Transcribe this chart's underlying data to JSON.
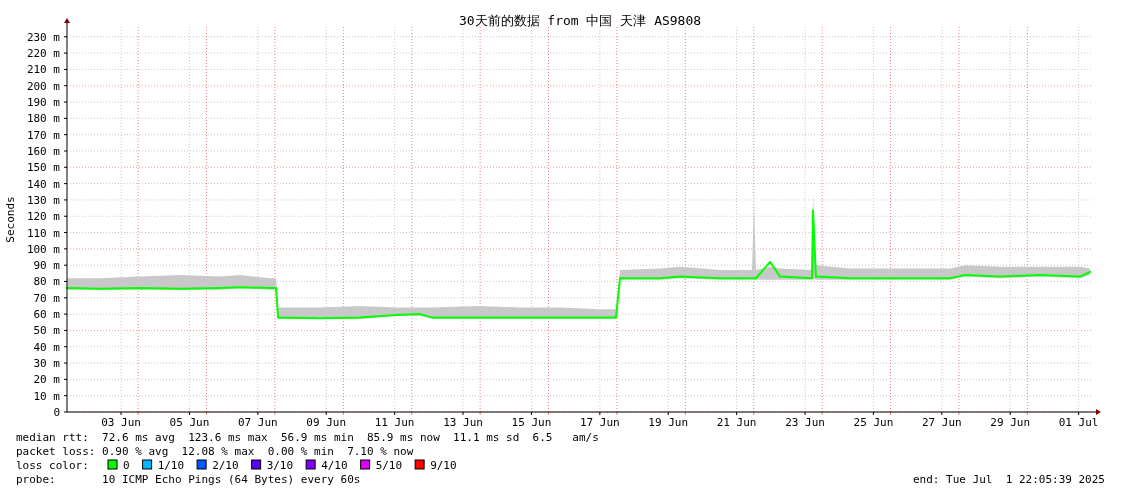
{
  "chart_data": {
    "type": "line",
    "title": "30天前的数据 from 中国 天津 AS9808",
    "ylabel": "Seconds",
    "legend_title": "loss color:",
    "annotations": [
      "median rtt:  72.6 ms avg  123.6 ms max  56.9 ms min  85.9 ms now  11.1 ms sd  6.5   am/s",
      "packet loss: 0.90 % avg  12.08 % max  0.00 % min  7.10 % now",
      "probe:       10 ICMP Echo Pings (64 Bytes) every 60s",
      "end: Tue Jul  1 22:05:39 2025"
    ],
    "x": [
      "2025-06-01T22:05",
      "2025-06-02T21:17",
      "2025-06-04T01:17",
      "2025-06-05T05:23",
      "2025-06-06T09:29",
      "2025-06-06T23:29",
      "2025-06-07T20:35",
      "2025-06-08T00:47",
      "2025-06-08T02:11",
      "2025-06-09T07:41",
      "2025-06-10T11:41",
      "2025-06-11T12:59",
      "2025-06-12T05:47",
      "2025-06-12T14:17",
      "2025-06-13T23:53",
      "2025-06-15T03:59",
      "2025-06-16T08:05",
      "2025-06-17T12:11",
      "2025-06-17T23:23",
      "2025-06-18T02:11",
      "2025-06-19T06:17",
      "2025-06-19T20:17",
      "2025-06-21T00:23",
      "2025-06-21T22:47",
      "2025-06-22T00:11",
      "2025-06-22T01:35",
      "2025-06-22T11:29",
      "2025-06-22T18:29",
      "2025-06-23T16:53",
      "2025-06-23T17:35",
      "2025-06-23T19:41",
      "2025-06-24T19:35",
      "2025-06-26T06:41",
      "2025-06-27T17:47",
      "2025-06-28T04:17",
      "2025-06-29T04:53",
      "2025-06-30T08:59",
      "2025-07-01T12:59",
      "2025-07-01T20:05"
    ],
    "series": [
      {
        "name": "0",
        "color": "#00ff00",
        "values": [
          76,
          75.5,
          76,
          75.5,
          76,
          76.5,
          76,
          76,
          58,
          57.5,
          58,
          59.5,
          60,
          58,
          58,
          58,
          58,
          58,
          58,
          82,
          82,
          83,
          82,
          82,
          82,
          82,
          92,
          83,
          82,
          123.6,
          83,
          82,
          82,
          82,
          84,
          83,
          84,
          83,
          85.9
        ],
        "lower": [
          75,
          75,
          75,
          75,
          75,
          76,
          75,
          75,
          57,
          57,
          57,
          59,
          59,
          57,
          57,
          57,
          57,
          57,
          57,
          81,
          81,
          82,
          81,
          81,
          81,
          81,
          81,
          81,
          81,
          82,
          81,
          81,
          81,
          81,
          83,
          82,
          83,
          82,
          84
        ],
        "upper": [
          82,
          82,
          83,
          84,
          83,
          84,
          82,
          82,
          64,
          64,
          65,
          64,
          64,
          64,
          65,
          64,
          64,
          63,
          63,
          87,
          88,
          89,
          87,
          87,
          128,
          87,
          89,
          88,
          87,
          134,
          90,
          88,
          88,
          88,
          90,
          89,
          89,
          89,
          88
        ]
      },
      {
        "name": "1/10",
        "color": "#00b8ff",
        "values": [
          null,
          null,
          null,
          null,
          null,
          null,
          null,
          null,
          null,
          null,
          null,
          null,
          null,
          null,
          null,
          null,
          null,
          null,
          null,
          null,
          null,
          null,
          null,
          null,
          null,
          null,
          null,
          null,
          null,
          null,
          null,
          null,
          null,
          null,
          null,
          null,
          null,
          null,
          null
        ]
      },
      {
        "name": "2/10",
        "color": "#0059ff",
        "values": [
          null,
          null,
          null,
          null,
          null,
          null,
          null,
          null,
          null,
          null,
          null,
          null,
          null,
          null,
          null,
          null,
          null,
          null,
          null,
          null,
          null,
          null,
          null,
          null,
          null,
          null,
          null,
          null,
          null,
          null,
          null,
          null,
          null,
          null,
          null,
          null,
          null,
          null,
          null
        ]
      },
      {
        "name": "3/10",
        "color": "#5e00ff",
        "values": [
          null,
          null,
          null,
          null,
          null,
          null,
          null,
          null,
          null,
          null,
          null,
          null,
          null,
          null,
          null,
          null,
          null,
          null,
          null,
          null,
          null,
          null,
          null,
          null,
          null,
          null,
          null,
          null,
          null,
          null,
          null,
          null,
          null,
          null,
          null,
          null,
          null,
          null,
          null
        ]
      },
      {
        "name": "4/10",
        "color": "#7e00ff",
        "values": [
          null,
          null,
          null,
          null,
          null,
          null,
          null,
          null,
          null,
          null,
          null,
          null,
          null,
          null,
          null,
          null,
          null,
          null,
          null,
          null,
          null,
          null,
          null,
          null,
          null,
          null,
          null,
          null,
          null,
          null,
          null,
          null,
          null,
          null,
          null,
          null,
          null,
          null,
          null
        ]
      },
      {
        "name": "5/10",
        "color": "#dd00ff",
        "values": [
          null,
          null,
          null,
          null,
          null,
          null,
          null,
          null,
          null,
          null,
          null,
          null,
          null,
          null,
          null,
          null,
          null,
          null,
          null,
          null,
          null,
          null,
          null,
          null,
          null,
          null,
          null,
          null,
          null,
          null,
          null,
          null,
          null,
          null,
          null,
          null,
          null,
          null,
          null
        ]
      },
      {
        "name": "9/10",
        "color": "#ff0000",
        "values": [
          null,
          null,
          null,
          null,
          null,
          null,
          null,
          null,
          null,
          null,
          null,
          null,
          null,
          null,
          null,
          null,
          null,
          null,
          null,
          null,
          null,
          null,
          null,
          null,
          null,
          null,
          null,
          null,
          null,
          null,
          null,
          null,
          null,
          null,
          null,
          null,
          null,
          null,
          null
        ]
      }
    ],
    "xlim": [
      "2025-06-01T22:05",
      "2025-07-01T22:05"
    ],
    "xticks": [
      {
        "value": "2025-06-03T12:00",
        "label": "03 Jun"
      },
      {
        "value": "2025-06-05T12:00",
        "label": "05 Jun"
      },
      {
        "value": "2025-06-07T12:00",
        "label": "07 Jun"
      },
      {
        "value": "2025-06-09T12:00",
        "label": "09 Jun"
      },
      {
        "value": "2025-06-11T12:00",
        "label": "11 Jun"
      },
      {
        "value": "2025-06-13T12:00",
        "label": "13 Jun"
      },
      {
        "value": "2025-06-15T12:00",
        "label": "15 Jun"
      },
      {
        "value": "2025-06-17T12:00",
        "label": "17 Jun"
      },
      {
        "value": "2025-06-19T12:00",
        "label": "19 Jun"
      },
      {
        "value": "2025-06-21T12:00",
        "label": "21 Jun"
      },
      {
        "value": "2025-06-23T12:00",
        "label": "23 Jun"
      },
      {
        "value": "2025-06-25T12:00",
        "label": "25 Jun"
      },
      {
        "value": "2025-06-27T12:00",
        "label": "27 Jun"
      },
      {
        "value": "2025-06-29T12:00",
        "label": "29 Jun"
      },
      {
        "value": "2025-07-01T12:00",
        "label": "01 Jul"
      },
      {
        "value": "2025-06-04T00:00",
        "label": null
      },
      {
        "value": "2025-06-06T00:00",
        "label": null
      },
      {
        "value": "2025-06-08T00:00",
        "label": null
      },
      {
        "value": "2025-06-10T00:00",
        "label": null
      },
      {
        "value": "2025-06-12T00:00",
        "label": null
      },
      {
        "value": "2025-06-14T00:00",
        "label": null
      },
      {
        "value": "2025-06-16T00:00",
        "label": null
      },
      {
        "value": "2025-06-18T00:00",
        "label": null
      },
      {
        "value": "2025-06-20T00:00",
        "label": null
      },
      {
        "value": "2025-06-22T00:00",
        "label": null
      },
      {
        "value": "2025-06-24T00:00",
        "label": null
      },
      {
        "value": "2025-06-26T00:00",
        "label": null
      },
      {
        "value": "2025-06-28T00:00",
        "label": null
      },
      {
        "value": "2025-06-30T00:00",
        "label": null
      }
    ],
    "ylim": [
      0,
      236
    ],
    "yticks": [
      {
        "value": 0,
        "label": "0"
      },
      {
        "value": 10,
        "label": "10 m"
      },
      {
        "value": 20,
        "label": "20 m"
      },
      {
        "value": 30,
        "label": "30 m"
      },
      {
        "value": 40,
        "label": "40 m"
      },
      {
        "value": 50,
        "label": "50 m"
      },
      {
        "value": 60,
        "label": "60 m"
      },
      {
        "value": 70,
        "label": "70 m"
      },
      {
        "value": 80,
        "label": "80 m"
      },
      {
        "value": 90,
        "label": "90 m"
      },
      {
        "value": 100,
        "label": "100 m"
      },
      {
        "value": 110,
        "label": "110 m"
      },
      {
        "value": 120,
        "label": "120 m"
      },
      {
        "value": 130,
        "label": "130 m"
      },
      {
        "value": 140,
        "label": "140 m"
      },
      {
        "value": 150,
        "label": "150 m"
      },
      {
        "value": 160,
        "label": "160 m"
      },
      {
        "value": 170,
        "label": "170 m"
      },
      {
        "value": 180,
        "label": "180 m"
      },
      {
        "value": 190,
        "label": "190 m"
      },
      {
        "value": 200,
        "label": "200 m"
      },
      {
        "value": 210,
        "label": "210 m"
      },
      {
        "value": 220,
        "label": "220 m"
      },
      {
        "value": 230,
        "label": "230 m"
      }
    ],
    "grid": true,
    "legend": "bottom left"
  }
}
